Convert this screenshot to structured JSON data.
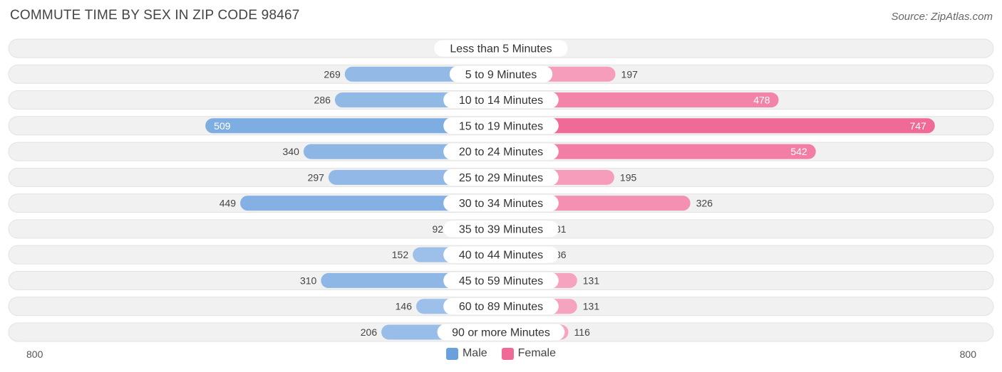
{
  "title": "COMMUTE TIME BY SEX IN ZIP CODE 98467",
  "source": "Source: ZipAtlas.com",
  "colors": {
    "male_light": "#aac8ed",
    "male_dark": "#6aa0dc",
    "female_light": "#f7afc7",
    "female_dark": "#f06a98",
    "track": "#f1f1f1"
  },
  "legend": [
    {
      "name": "Male",
      "color": "#6aa0dc"
    },
    {
      "name": "Female",
      "color": "#f06a98"
    }
  ],
  "axis": {
    "left_label": "800",
    "right_label": "800"
  },
  "chart_data": {
    "type": "bar",
    "orientation": "horizontal-diverging",
    "categories": [
      "Less than 5 Minutes",
      "5 to 9 Minutes",
      "10 to 14 Minutes",
      "15 to 19 Minutes",
      "20 to 24 Minutes",
      "25 to 29 Minutes",
      "30 to 34 Minutes",
      "35 to 39 Minutes",
      "40 to 44 Minutes",
      "45 to 59 Minutes",
      "60 to 89 Minutes",
      "90 or more Minutes"
    ],
    "series": [
      {
        "name": "Male",
        "values": [
          0,
          269,
          286,
          509,
          340,
          297,
          449,
          92,
          152,
          310,
          146,
          206
        ]
      },
      {
        "name": "Female",
        "values": [
          12,
          197,
          478,
          747,
          542,
          195,
          326,
          31,
          36,
          131,
          131,
          116
        ]
      }
    ],
    "xlim": [
      -800,
      800
    ],
    "legend_position": "bottom-center"
  }
}
